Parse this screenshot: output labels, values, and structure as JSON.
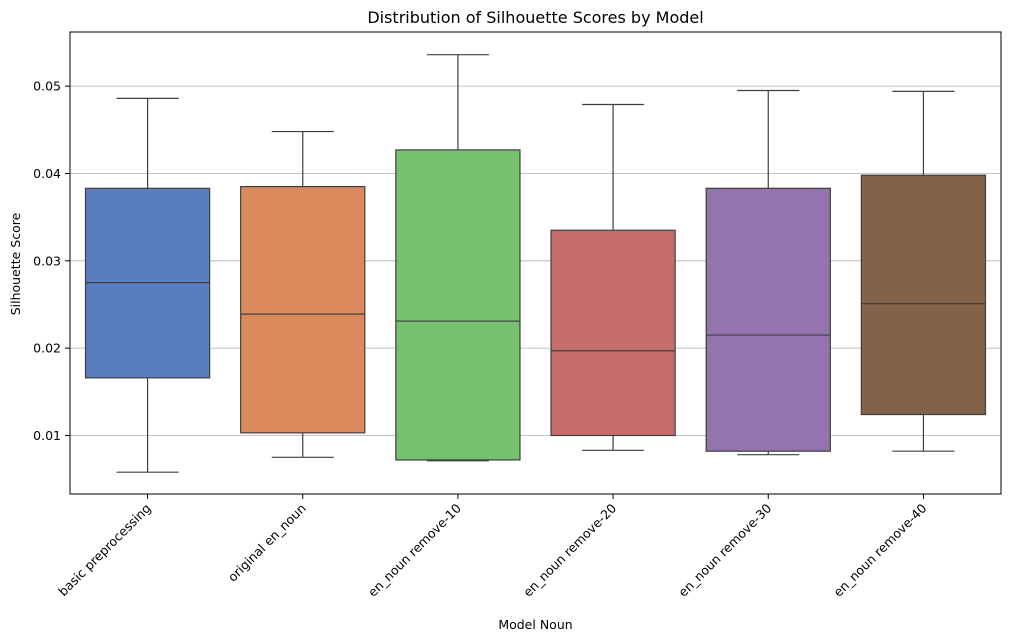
{
  "chart_data": {
    "type": "box",
    "title": "Distribution of Silhouette Scores by Model",
    "xlabel": "Model Noun",
    "ylabel": "Silhouette Score",
    "ylim": [
      0.0033,
      0.0562
    ],
    "yticks": [
      0.01,
      0.02,
      0.03,
      0.04,
      0.05
    ],
    "ytick_labels": [
      "0.01",
      "0.02",
      "0.03",
      "0.04",
      "0.05"
    ],
    "grid": "y",
    "legend": "none",
    "categories": [
      "basic preprocessing",
      "original en_noun",
      "en_noun remove-10",
      "en_noun remove-20",
      "en_noun remove-30",
      "en_noun remove-40"
    ],
    "series": [
      {
        "whisker_low": 0.0058,
        "q1": 0.0166,
        "median": 0.0275,
        "q3": 0.0383,
        "whisker_high": 0.0486,
        "color": "#5a7dc1"
      },
      {
        "whisker_low": 0.0075,
        "q1": 0.0103,
        "median": 0.0239,
        "q3": 0.0385,
        "whisker_high": 0.0448,
        "color": "#da8a5c"
      },
      {
        "whisker_low": 0.0071,
        "q1": 0.0072,
        "median": 0.0231,
        "q3": 0.0427,
        "whisker_high": 0.0536,
        "color": "#75c170"
      },
      {
        "whisker_low": 0.0083,
        "q1": 0.01,
        "median": 0.0197,
        "q3": 0.0335,
        "whisker_high": 0.0479,
        "color": "#c66e6c"
      },
      {
        "whisker_low": 0.0078,
        "q1": 0.0082,
        "median": 0.0215,
        "q3": 0.0383,
        "whisker_high": 0.0495,
        "color": "#9374ad"
      },
      {
        "whisker_low": 0.0082,
        "q1": 0.0124,
        "median": 0.0251,
        "q3": 0.0398,
        "whisker_high": 0.0494,
        "color": "#836247"
      }
    ]
  }
}
